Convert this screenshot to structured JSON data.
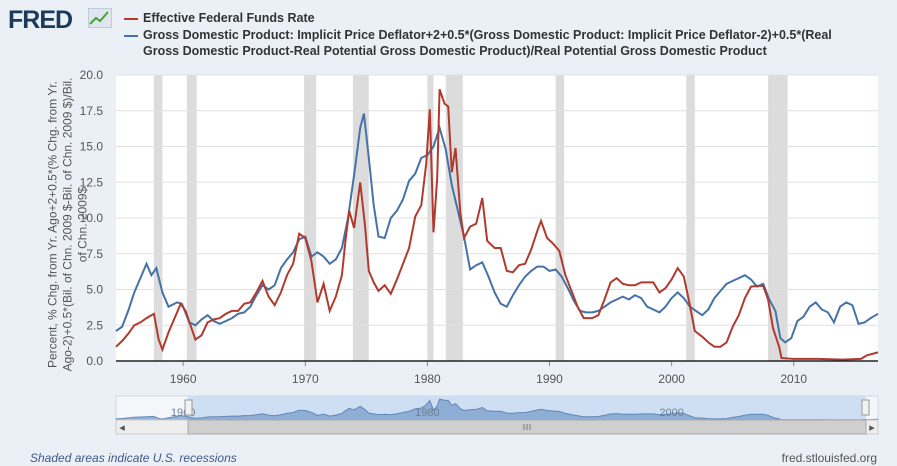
{
  "app": {
    "logo_text": "FRED",
    "logo_icon": "fred-graph-icon"
  },
  "footer": {
    "recessions_note": "Shaded areas indicate U.S. recessions",
    "source": "fred.stlouisfed.org"
  },
  "navigator": {
    "ticks": [
      "1960",
      "1980",
      "2000"
    ],
    "scroll_icon": "grip-icon",
    "left_arrow": "◂",
    "right_arrow": "▸"
  },
  "chart_data": {
    "type": "line",
    "ylabel": "Percent, % Chg. from Yr. Ago+2+0.5*(% Chg. from Yr. Ago-2)+0.5*(Bil. of Chn. 2009 $-Bil. of Chn. 2009 $)/Bil. of Chn. 2009$",
    "xlim": [
      1954.5,
      2016.9
    ],
    "ylim": [
      0,
      20
    ],
    "yticks": [
      "0.0",
      "2.5",
      "5.0",
      "7.5",
      "10.0",
      "12.5",
      "15.0",
      "17.5",
      "20.0"
    ],
    "xticks": [
      "1960",
      "1970",
      "1980",
      "1990",
      "2000",
      "2010"
    ],
    "grid": "horizontal",
    "legend": "top",
    "recessions": [
      [
        1957.6,
        1958.3
      ],
      [
        1960.3,
        1961.1
      ],
      [
        1969.9,
        1970.9
      ],
      [
        1973.9,
        1975.2
      ],
      [
        1980.0,
        1980.5
      ],
      [
        1981.5,
        1982.9
      ],
      [
        1990.5,
        1991.2
      ],
      [
        2001.2,
        2001.9
      ],
      [
        2007.9,
        2009.5
      ]
    ],
    "colors": {
      "fedfunds": "#b03a2e",
      "taylor": "#4572a7",
      "recession": "#dcdcdc"
    },
    "series": [
      {
        "name": "Effective Federal Funds Rate",
        "color": "#b03a2e",
        "points": [
          [
            1954.5,
            1.0
          ],
          [
            1955.0,
            1.4
          ],
          [
            1955.5,
            1.9
          ],
          [
            1956.0,
            2.5
          ],
          [
            1956.5,
            2.7
          ],
          [
            1957.0,
            3.0
          ],
          [
            1957.6,
            3.3
          ],
          [
            1958.0,
            1.5
          ],
          [
            1958.3,
            0.8
          ],
          [
            1958.8,
            2.0
          ],
          [
            1959.3,
            3.0
          ],
          [
            1959.8,
            4.0
          ],
          [
            1960.2,
            3.5
          ],
          [
            1960.6,
            2.5
          ],
          [
            1961.0,
            1.5
          ],
          [
            1961.5,
            1.8
          ],
          [
            1962.0,
            2.7
          ],
          [
            1962.5,
            2.9
          ],
          [
            1963.0,
            3.0
          ],
          [
            1963.5,
            3.3
          ],
          [
            1964.0,
            3.5
          ],
          [
            1964.5,
            3.5
          ],
          [
            1965.0,
            4.0
          ],
          [
            1965.5,
            4.1
          ],
          [
            1966.0,
            4.8
          ],
          [
            1966.5,
            5.6
          ],
          [
            1967.0,
            4.5
          ],
          [
            1967.5,
            3.9
          ],
          [
            1968.0,
            4.8
          ],
          [
            1968.5,
            6.0
          ],
          [
            1969.0,
            6.8
          ],
          [
            1969.5,
            8.9
          ],
          [
            1970.0,
            8.6
          ],
          [
            1970.5,
            7.0
          ],
          [
            1971.0,
            4.1
          ],
          [
            1971.5,
            5.4
          ],
          [
            1972.0,
            3.5
          ],
          [
            1972.5,
            4.5
          ],
          [
            1973.0,
            6.0
          ],
          [
            1973.3,
            8.5
          ],
          [
            1973.6,
            10.5
          ],
          [
            1974.0,
            9.3
          ],
          [
            1974.5,
            12.5
          ],
          [
            1974.9,
            9.4
          ],
          [
            1975.2,
            6.3
          ],
          [
            1975.6,
            5.5
          ],
          [
            1976.0,
            4.9
          ],
          [
            1976.5,
            5.3
          ],
          [
            1977.0,
            4.7
          ],
          [
            1977.5,
            5.7
          ],
          [
            1978.0,
            6.8
          ],
          [
            1978.5,
            7.9
          ],
          [
            1979.0,
            10.1
          ],
          [
            1979.5,
            10.9
          ],
          [
            1979.9,
            13.8
          ],
          [
            1980.2,
            17.6
          ],
          [
            1980.5,
            9.0
          ],
          [
            1980.8,
            12.8
          ],
          [
            1981.0,
            19.0
          ],
          [
            1981.4,
            18.0
          ],
          [
            1981.7,
            17.8
          ],
          [
            1982.0,
            13.2
          ],
          [
            1982.3,
            14.9
          ],
          [
            1982.7,
            10.3
          ],
          [
            1983.0,
            8.6
          ],
          [
            1983.5,
            9.4
          ],
          [
            1984.0,
            9.6
          ],
          [
            1984.5,
            11.4
          ],
          [
            1984.9,
            8.4
          ],
          [
            1985.5,
            7.9
          ],
          [
            1986.0,
            7.9
          ],
          [
            1986.5,
            6.3
          ],
          [
            1987.0,
            6.2
          ],
          [
            1987.5,
            6.7
          ],
          [
            1988.0,
            6.8
          ],
          [
            1988.5,
            7.8
          ],
          [
            1989.0,
            9.1
          ],
          [
            1989.3,
            9.8
          ],
          [
            1989.8,
            8.6
          ],
          [
            1990.3,
            8.2
          ],
          [
            1990.8,
            7.7
          ],
          [
            1991.3,
            6.0
          ],
          [
            1991.8,
            4.9
          ],
          [
            1992.3,
            3.8
          ],
          [
            1992.8,
            3.0
          ],
          [
            1993.5,
            3.0
          ],
          [
            1994.0,
            3.2
          ],
          [
            1994.5,
            4.3
          ],
          [
            1995.0,
            5.5
          ],
          [
            1995.5,
            5.8
          ],
          [
            1996.0,
            5.4
          ],
          [
            1996.5,
            5.3
          ],
          [
            1997.0,
            5.3
          ],
          [
            1997.5,
            5.5
          ],
          [
            1998.0,
            5.5
          ],
          [
            1998.5,
            5.5
          ],
          [
            1999.0,
            4.8
          ],
          [
            1999.5,
            5.1
          ],
          [
            2000.0,
            5.7
          ],
          [
            2000.5,
            6.5
          ],
          [
            2001.0,
            5.9
          ],
          [
            2001.4,
            4.3
          ],
          [
            2001.9,
            2.1
          ],
          [
            2002.5,
            1.7
          ],
          [
            2003.0,
            1.3
          ],
          [
            2003.5,
            1.0
          ],
          [
            2004.0,
            1.0
          ],
          [
            2004.5,
            1.3
          ],
          [
            2005.0,
            2.4
          ],
          [
            2005.5,
            3.2
          ],
          [
            2006.0,
            4.4
          ],
          [
            2006.5,
            5.2
          ],
          [
            2007.0,
            5.25
          ],
          [
            2007.5,
            5.25
          ],
          [
            2007.9,
            4.3
          ],
          [
            2008.3,
            2.3
          ],
          [
            2008.8,
            1.0
          ],
          [
            2009.0,
            0.2
          ],
          [
            2010.0,
            0.15
          ],
          [
            2012.0,
            0.15
          ],
          [
            2014.0,
            0.1
          ],
          [
            2015.5,
            0.15
          ],
          [
            2016.0,
            0.4
          ],
          [
            2016.9,
            0.6
          ]
        ]
      },
      {
        "name": "Gross Domestic Product: Implicit Price Deflator+2+0.5*(Gross Domestic Product: Implicit Price Deflator-2)+0.5*(Real Gross Domestic Product-Real Potential Gross Domestic Product)/Real Potential Gross Domestic Product",
        "color": "#4572a7",
        "points": [
          [
            1954.5,
            2.1
          ],
          [
            1955.0,
            2.4
          ],
          [
            1955.5,
            3.5
          ],
          [
            1956.0,
            4.8
          ],
          [
            1956.5,
            5.8
          ],
          [
            1957.0,
            6.8
          ],
          [
            1957.4,
            6.0
          ],
          [
            1957.8,
            6.5
          ],
          [
            1958.3,
            4.8
          ],
          [
            1958.8,
            3.8
          ],
          [
            1959.5,
            4.1
          ],
          [
            1959.9,
            4.0
          ],
          [
            1960.5,
            2.7
          ],
          [
            1961.0,
            2.5
          ],
          [
            1961.5,
            2.9
          ],
          [
            1962.0,
            3.2
          ],
          [
            1962.5,
            2.8
          ],
          [
            1963.0,
            2.6
          ],
          [
            1963.5,
            2.8
          ],
          [
            1964.0,
            3.0
          ],
          [
            1964.5,
            3.3
          ],
          [
            1965.0,
            3.4
          ],
          [
            1965.5,
            3.8
          ],
          [
            1966.0,
            4.6
          ],
          [
            1966.5,
            5.3
          ],
          [
            1967.0,
            5.0
          ],
          [
            1967.5,
            5.3
          ],
          [
            1968.0,
            6.5
          ],
          [
            1968.5,
            7.1
          ],
          [
            1969.0,
            7.6
          ],
          [
            1969.5,
            8.5
          ],
          [
            1970.0,
            8.7
          ],
          [
            1970.5,
            7.3
          ],
          [
            1971.0,
            7.6
          ],
          [
            1971.5,
            7.3
          ],
          [
            1972.0,
            6.8
          ],
          [
            1972.5,
            7.1
          ],
          [
            1973.0,
            7.9
          ],
          [
            1973.5,
            10.0
          ],
          [
            1974.0,
            13.0
          ],
          [
            1974.5,
            16.3
          ],
          [
            1974.8,
            17.3
          ],
          [
            1975.2,
            14.2
          ],
          [
            1975.6,
            10.9
          ],
          [
            1976.0,
            8.7
          ],
          [
            1976.5,
            8.6
          ],
          [
            1977.0,
            10.0
          ],
          [
            1977.5,
            10.5
          ],
          [
            1978.0,
            11.3
          ],
          [
            1978.5,
            12.6
          ],
          [
            1979.0,
            13.1
          ],
          [
            1979.5,
            14.2
          ],
          [
            1980.0,
            14.4
          ],
          [
            1980.5,
            15.0
          ],
          [
            1981.0,
            16.3
          ],
          [
            1981.5,
            14.8
          ],
          [
            1982.0,
            12.3
          ],
          [
            1982.5,
            10.5
          ],
          [
            1983.0,
            8.7
          ],
          [
            1983.5,
            6.4
          ],
          [
            1984.0,
            6.7
          ],
          [
            1984.5,
            6.9
          ],
          [
            1985.0,
            5.9
          ],
          [
            1985.5,
            4.8
          ],
          [
            1986.0,
            4.0
          ],
          [
            1986.5,
            3.8
          ],
          [
            1987.0,
            4.6
          ],
          [
            1987.5,
            5.3
          ],
          [
            1988.0,
            5.9
          ],
          [
            1988.5,
            6.3
          ],
          [
            1989.0,
            6.6
          ],
          [
            1989.5,
            6.6
          ],
          [
            1990.0,
            6.3
          ],
          [
            1990.5,
            6.4
          ],
          [
            1991.0,
            5.9
          ],
          [
            1991.5,
            5.1
          ],
          [
            1992.0,
            4.2
          ],
          [
            1992.5,
            3.5
          ],
          [
            1993.0,
            3.4
          ],
          [
            1993.5,
            3.4
          ],
          [
            1994.0,
            3.5
          ],
          [
            1994.5,
            3.8
          ],
          [
            1995.0,
            4.1
          ],
          [
            1995.5,
            4.3
          ],
          [
            1996.0,
            4.5
          ],
          [
            1996.5,
            4.3
          ],
          [
            1997.0,
            4.6
          ],
          [
            1997.5,
            4.4
          ],
          [
            1998.0,
            3.8
          ],
          [
            1998.5,
            3.6
          ],
          [
            1999.0,
            3.4
          ],
          [
            1999.5,
            3.8
          ],
          [
            2000.0,
            4.4
          ],
          [
            2000.5,
            4.8
          ],
          [
            2001.0,
            4.4
          ],
          [
            2001.5,
            3.8
          ],
          [
            2002.0,
            3.5
          ],
          [
            2002.5,
            3.2
          ],
          [
            2003.0,
            3.6
          ],
          [
            2003.5,
            4.4
          ],
          [
            2004.0,
            4.9
          ],
          [
            2004.5,
            5.4
          ],
          [
            2005.0,
            5.6
          ],
          [
            2005.5,
            5.8
          ],
          [
            2006.0,
            6.0
          ],
          [
            2006.5,
            5.7
          ],
          [
            2007.0,
            5.2
          ],
          [
            2007.5,
            5.4
          ],
          [
            2008.0,
            4.3
          ],
          [
            2008.5,
            3.5
          ],
          [
            2008.9,
            1.6
          ],
          [
            2009.3,
            1.3
          ],
          [
            2009.8,
            1.6
          ],
          [
            2010.3,
            2.8
          ],
          [
            2010.8,
            3.1
          ],
          [
            2011.3,
            3.8
          ],
          [
            2011.8,
            4.1
          ],
          [
            2012.3,
            3.6
          ],
          [
            2012.8,
            3.4
          ],
          [
            2013.3,
            2.7
          ],
          [
            2013.8,
            3.8
          ],
          [
            2014.3,
            4.1
          ],
          [
            2014.8,
            3.9
          ],
          [
            2015.3,
            2.6
          ],
          [
            2015.8,
            2.7
          ],
          [
            2016.3,
            3.0
          ],
          [
            2016.9,
            3.3
          ]
        ]
      }
    ]
  }
}
